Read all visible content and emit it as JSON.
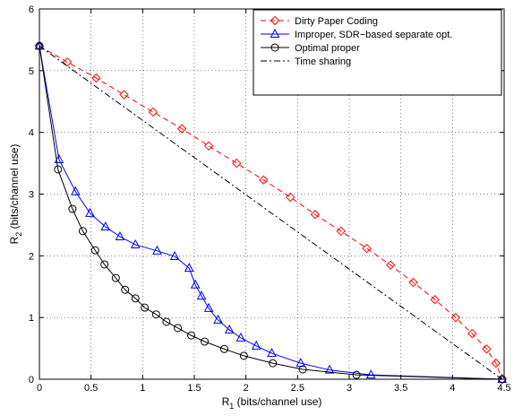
{
  "chart_data": {
    "type": "line",
    "xlabel": [
      "R",
      "1",
      " (bits/channel use)"
    ],
    "ylabel": [
      "R",
      "2",
      " (bits/channel use)"
    ],
    "xlim": [
      0,
      4.5
    ],
    "ylim": [
      0,
      6
    ],
    "xticks": [
      0,
      0.5,
      1,
      1.5,
      2,
      2.5,
      3,
      3.5,
      4,
      4.5
    ],
    "yticks": [
      0,
      1,
      2,
      3,
      4,
      5,
      6
    ],
    "grid": true,
    "legend": "upper right",
    "series": [
      {
        "name": "Dirty Paper Coding",
        "color": "#ff0000",
        "marker": "diamond",
        "linestyle": "dashed",
        "x": [
          0,
          0.27,
          0.55,
          0.82,
          1.1,
          1.38,
          1.64,
          1.91,
          2.17,
          2.43,
          2.67,
          2.92,
          3.17,
          3.4,
          3.62,
          3.83,
          4.03,
          4.19,
          4.33,
          4.42,
          4.48
        ],
        "values": [
          5.4,
          5.14,
          4.88,
          4.61,
          4.33,
          4.06,
          3.78,
          3.5,
          3.23,
          2.95,
          2.67,
          2.4,
          2.12,
          1.85,
          1.57,
          1.29,
          1.0,
          0.74,
          0.49,
          0.26,
          0
        ]
      },
      {
        "name": "Improper, SDR−based separate opt.",
        "color": "#0000ff",
        "marker": "triangle",
        "linestyle": "solid",
        "x": [
          0,
          0.19,
          0.35,
          0.49,
          0.64,
          0.78,
          0.93,
          1.14,
          1.31,
          1.45,
          1.51,
          1.57,
          1.64,
          1.73,
          1.84,
          1.95,
          2.1,
          2.25,
          2.53,
          2.81,
          3.21,
          4.48
        ],
        "values": [
          5.4,
          3.56,
          3.04,
          2.69,
          2.47,
          2.31,
          2.18,
          2.08,
          1.99,
          1.8,
          1.53,
          1.35,
          1.15,
          0.96,
          0.8,
          0.67,
          0.54,
          0.42,
          0.26,
          0.15,
          0.07,
          0
        ]
      },
      {
        "name": "Optimal proper",
        "color": "#000000",
        "marker": "circle",
        "linestyle": "solid",
        "x": [
          0,
          0.18,
          0.32,
          0.42,
          0.54,
          0.63,
          0.74,
          0.83,
          0.93,
          1.02,
          1.13,
          1.23,
          1.34,
          1.47,
          1.6,
          1.79,
          1.98,
          2.26,
          2.55,
          3.07,
          4.48
        ],
        "values": [
          5.4,
          3.4,
          2.76,
          2.4,
          2.09,
          1.86,
          1.64,
          1.45,
          1.31,
          1.16,
          1.05,
          0.93,
          0.83,
          0.71,
          0.61,
          0.49,
          0.38,
          0.26,
          0.16,
          0.07,
          0
        ]
      },
      {
        "name": "Time sharing",
        "color": "#000000",
        "marker": "none",
        "linestyle": "dashdot",
        "x": [
          0,
          4.48
        ],
        "values": [
          5.4,
          0
        ]
      }
    ]
  }
}
